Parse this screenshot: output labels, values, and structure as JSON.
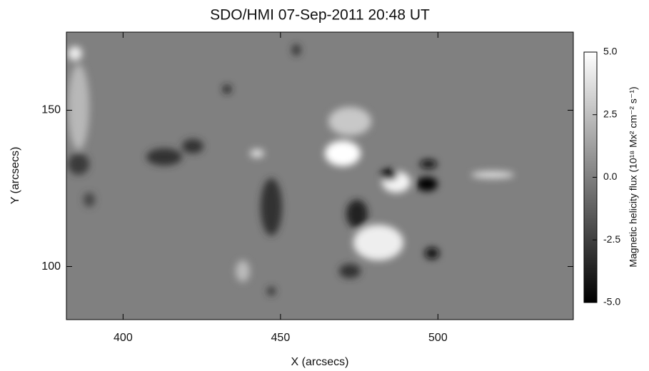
{
  "chart_data": {
    "type": "image",
    "title": "SDO/HMI 07-Sep-2011 20:48 UT",
    "x_label": "X (arcsecs)",
    "y_label": "Y (arcsecs)",
    "xlim": [
      382,
      543
    ],
    "xticks": [
      400,
      450,
      500
    ],
    "ylim": [
      83,
      175
    ],
    "yticks": [
      100,
      150
    ],
    "colorbar": {
      "label": "Magnetic helicity flux (10¹⁸ Mx² cm⁻² s⁻¹)",
      "lim": [
        -5,
        5
      ],
      "colormap": [
        "#000000",
        "#ffffff"
      ],
      "ticks": [
        {
          "value": 5,
          "label": "5.0"
        },
        {
          "value": 2.5,
          "label": "2.5"
        },
        {
          "value": 0,
          "label": "0.0"
        },
        {
          "value": -2.5,
          "label": "-2.5"
        },
        {
          "value": -5,
          "label": "-5.0"
        }
      ]
    }
  }
}
